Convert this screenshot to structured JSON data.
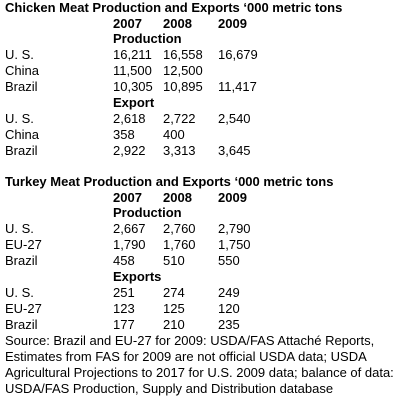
{
  "sections": [
    {
      "title": "Chicken Meat Production and Exports ‘000 metric tons",
      "years": [
        "2007",
        "2008",
        "2009"
      ],
      "groups": [
        {
          "label": "Production",
          "rows": [
            {
              "label": "U. S.",
              "values": [
                "16,211",
                "16,558",
                "16,679"
              ]
            },
            {
              "label": "China",
              "values": [
                "11,500",
                "12,500"
              ]
            },
            {
              "label": "Brazil",
              "values": [
                "10,305",
                "10,895",
                "11,417"
              ]
            }
          ]
        },
        {
          "label": "Export",
          "rows": [
            {
              "label": "U. S.",
              "values": [
                "2,618",
                "2,722",
                "2,540"
              ]
            },
            {
              "label": "China",
              "values": [
                "358",
                "400"
              ]
            },
            {
              "label": "Brazil",
              "values": [
                "2,922",
                "3,313",
                "3,645"
              ]
            }
          ]
        }
      ]
    },
    {
      "title": "Turkey Meat Production and Exports ‘000 metric tons",
      "years": [
        "2007",
        "2008",
        "2009"
      ],
      "groups": [
        {
          "label": "Production",
          "rows": [
            {
              "label": "U. S.",
              "values": [
                "2,667",
                "2,760",
                "2,790"
              ]
            },
            {
              "label": "EU-27",
              "values": [
                "1,790",
                "1,760",
                "1,750"
              ]
            },
            {
              "label": "Brazil",
              "values": [
                "458",
                "510",
                "550"
              ]
            }
          ]
        },
        {
          "label": "Exports",
          "rows": [
            {
              "label": "U. S.",
              "values": [
                "251",
                "274",
                "249"
              ]
            },
            {
              "label": "EU-27",
              "values": [
                "123",
                "125",
                "120"
              ]
            },
            {
              "label": "Brazil",
              "values": [
                "177",
                "210",
                "235"
              ]
            }
          ]
        }
      ]
    }
  ],
  "source": [
    "Source: Brazil and EU-27 for 2009: USDA/FAS Attaché Reports,",
    "Estimates from FAS for 2009 are not official USDA data; USDA",
    "Agricultural Projections to 2017 for U.S. 2009 data; balance of data:",
    "USDA/FAS Production, Supply and Distribution database"
  ]
}
